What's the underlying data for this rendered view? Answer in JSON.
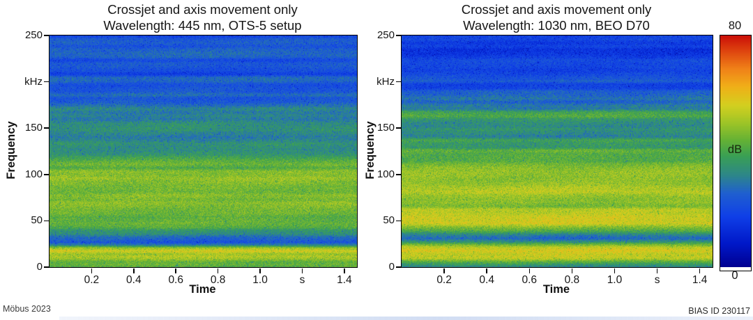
{
  "panels": [
    {
      "title_line1": "Crossjet and axis movement only",
      "title_line2": "Wavelength: 445 nm, OTS-5 setup"
    },
    {
      "title_line1": "Crossjet and axis movement only",
      "title_line2": "Wavelength: 1030 nm, BEO D70"
    }
  ],
  "axes": {
    "y_label": "Frequency",
    "x_label": "Time",
    "y_max": 250,
    "x_max": 1.46,
    "y_ticks": [
      {
        "value": 250,
        "label": "250"
      },
      {
        "value": 200,
        "label": "kHz"
      },
      {
        "value": 150,
        "label": "150"
      },
      {
        "value": 100,
        "label": "100"
      },
      {
        "value": 50,
        "label": "50"
      },
      {
        "value": 0,
        "label": "0"
      }
    ],
    "x_ticks": [
      {
        "value": 0.2,
        "label": "0.2"
      },
      {
        "value": 0.4,
        "label": "0.4"
      },
      {
        "value": 0.6,
        "label": "0.6"
      },
      {
        "value": 0.8,
        "label": "0.8"
      },
      {
        "value": 1.0,
        "label": "1.0"
      },
      {
        "value": 1.2,
        "label": "s"
      },
      {
        "value": 1.4,
        "label": "1.4"
      }
    ]
  },
  "colorbar": {
    "max_label": "80",
    "min_label": "0",
    "unit_label": "dB",
    "min": 0,
    "max": 80,
    "stops": [
      [
        0.0,
        "#000090"
      ],
      [
        0.1,
        "#0018c8"
      ],
      [
        0.22,
        "#1040e8"
      ],
      [
        0.32,
        "#2060d0"
      ],
      [
        0.4,
        "#2e8888"
      ],
      [
        0.48,
        "#3aa055"
      ],
      [
        0.55,
        "#66b235"
      ],
      [
        0.62,
        "#9cc428"
      ],
      [
        0.7,
        "#d4d020"
      ],
      [
        0.78,
        "#f0b018"
      ],
      [
        0.86,
        "#f08018"
      ],
      [
        0.93,
        "#e04810"
      ],
      [
        1.0,
        "#cc1008"
      ]
    ]
  },
  "footer": {
    "left": "Möbus 2023",
    "right": "BIAS ID 230117"
  },
  "render": {
    "noise_db": 5,
    "band_amp": 3.4,
    "speckle_prob": 0.03,
    "speckle_db": -11
  },
  "chart_data": [
    {
      "type": "heatmap",
      "title": "Crossjet and axis movement only — Wavelength: 445 nm, OTS-5 setup",
      "xlabel": "Time",
      "x_unit": "s",
      "ylabel": "Frequency",
      "y_unit": "kHz",
      "value_unit": "dB",
      "xlim": [
        0,
        1.46
      ],
      "ylim": [
        0,
        250
      ],
      "value_range": [
        0,
        80
      ],
      "legend_position": "shared colorbar right",
      "grid": false,
      "note": "Broadband acoustic spectrogram; intensity nearly constant over time, banded in frequency.",
      "profile_freq_db": [
        [
          250,
          22
        ],
        [
          230,
          22
        ],
        [
          215,
          20
        ],
        [
          205,
          23
        ],
        [
          196,
          20
        ],
        [
          188,
          24
        ],
        [
          178,
          27
        ],
        [
          168,
          30
        ],
        [
          158,
          31
        ],
        [
          148,
          33
        ],
        [
          138,
          35
        ],
        [
          128,
          37
        ],
        [
          118,
          39
        ],
        [
          110,
          41
        ],
        [
          104,
          45
        ],
        [
          97,
          46
        ],
        [
          90,
          48
        ],
        [
          84,
          45
        ],
        [
          78,
          48
        ],
        [
          72,
          46
        ],
        [
          66,
          48
        ],
        [
          60,
          47
        ],
        [
          54,
          45
        ],
        [
          48,
          43
        ],
        [
          42,
          40
        ],
        [
          36,
          34
        ],
        [
          31,
          29
        ],
        [
          27,
          25
        ],
        [
          24,
          33
        ],
        [
          21,
          49
        ],
        [
          18,
          53
        ],
        [
          15,
          50
        ],
        [
          12,
          54
        ],
        [
          9,
          51
        ],
        [
          6,
          47
        ],
        [
          3,
          44
        ],
        [
          0,
          41
        ]
      ]
    },
    {
      "type": "heatmap",
      "title": "Crossjet and axis movement only — Wavelength: 1030 nm, BEO D70",
      "xlabel": "Time",
      "x_unit": "s",
      "ylabel": "Frequency",
      "y_unit": "kHz",
      "value_unit": "dB",
      "xlim": [
        0,
        1.46
      ],
      "ylim": [
        0,
        250
      ],
      "value_range": [
        0,
        80
      ],
      "legend_position": "shared colorbar right",
      "grid": false,
      "note": "Brighter (higher dB) below ~120 kHz than 445 nm panel; strong yellow bands near 50 kHz and 12-25 kHz.",
      "profile_freq_db": [
        [
          250,
          19
        ],
        [
          235,
          18
        ],
        [
          220,
          17
        ],
        [
          205,
          19
        ],
        [
          195,
          22
        ],
        [
          185,
          26
        ],
        [
          176,
          30
        ],
        [
          168,
          36
        ],
        [
          162,
          38
        ],
        [
          156,
          34
        ],
        [
          148,
          33
        ],
        [
          140,
          36
        ],
        [
          132,
          39
        ],
        [
          124,
          42
        ],
        [
          116,
          44
        ],
        [
          108,
          46
        ],
        [
          100,
          48
        ],
        [
          93,
          50
        ],
        [
          86,
          52
        ],
        [
          80,
          50
        ],
        [
          74,
          52
        ],
        [
          68,
          50
        ],
        [
          62,
          52
        ],
        [
          56,
          54
        ],
        [
          51,
          57
        ],
        [
          47,
          52
        ],
        [
          43,
          45
        ],
        [
          39,
          40
        ],
        [
          35,
          33
        ],
        [
          31,
          29
        ],
        [
          28,
          34
        ],
        [
          25,
          48
        ],
        [
          22,
          55
        ],
        [
          19,
          57
        ],
        [
          16,
          55
        ],
        [
          13,
          56
        ],
        [
          10,
          52
        ],
        [
          7,
          46
        ],
        [
          4,
          40
        ],
        [
          0,
          32
        ]
      ]
    }
  ]
}
